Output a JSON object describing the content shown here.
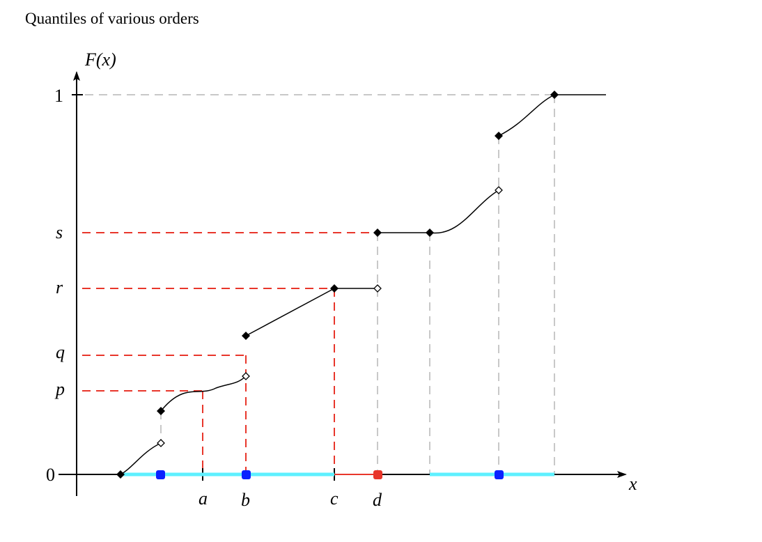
{
  "title": "Quantiles of various orders",
  "axes": {
    "y_label": "F(x)",
    "x_label": "x",
    "y_zero": "0",
    "y_one": "1"
  },
  "levels": [
    "p",
    "q",
    "r",
    "s"
  ],
  "points": [
    "a",
    "b",
    "c",
    "d"
  ],
  "colors": {
    "curve": "#000000",
    "guide_red": "#e8362b",
    "guide_gray": "#c8c8c8",
    "interval_cyan": "#5ef0ff",
    "point_blue": "#0a22ff",
    "point_red": "#e8362b"
  }
}
